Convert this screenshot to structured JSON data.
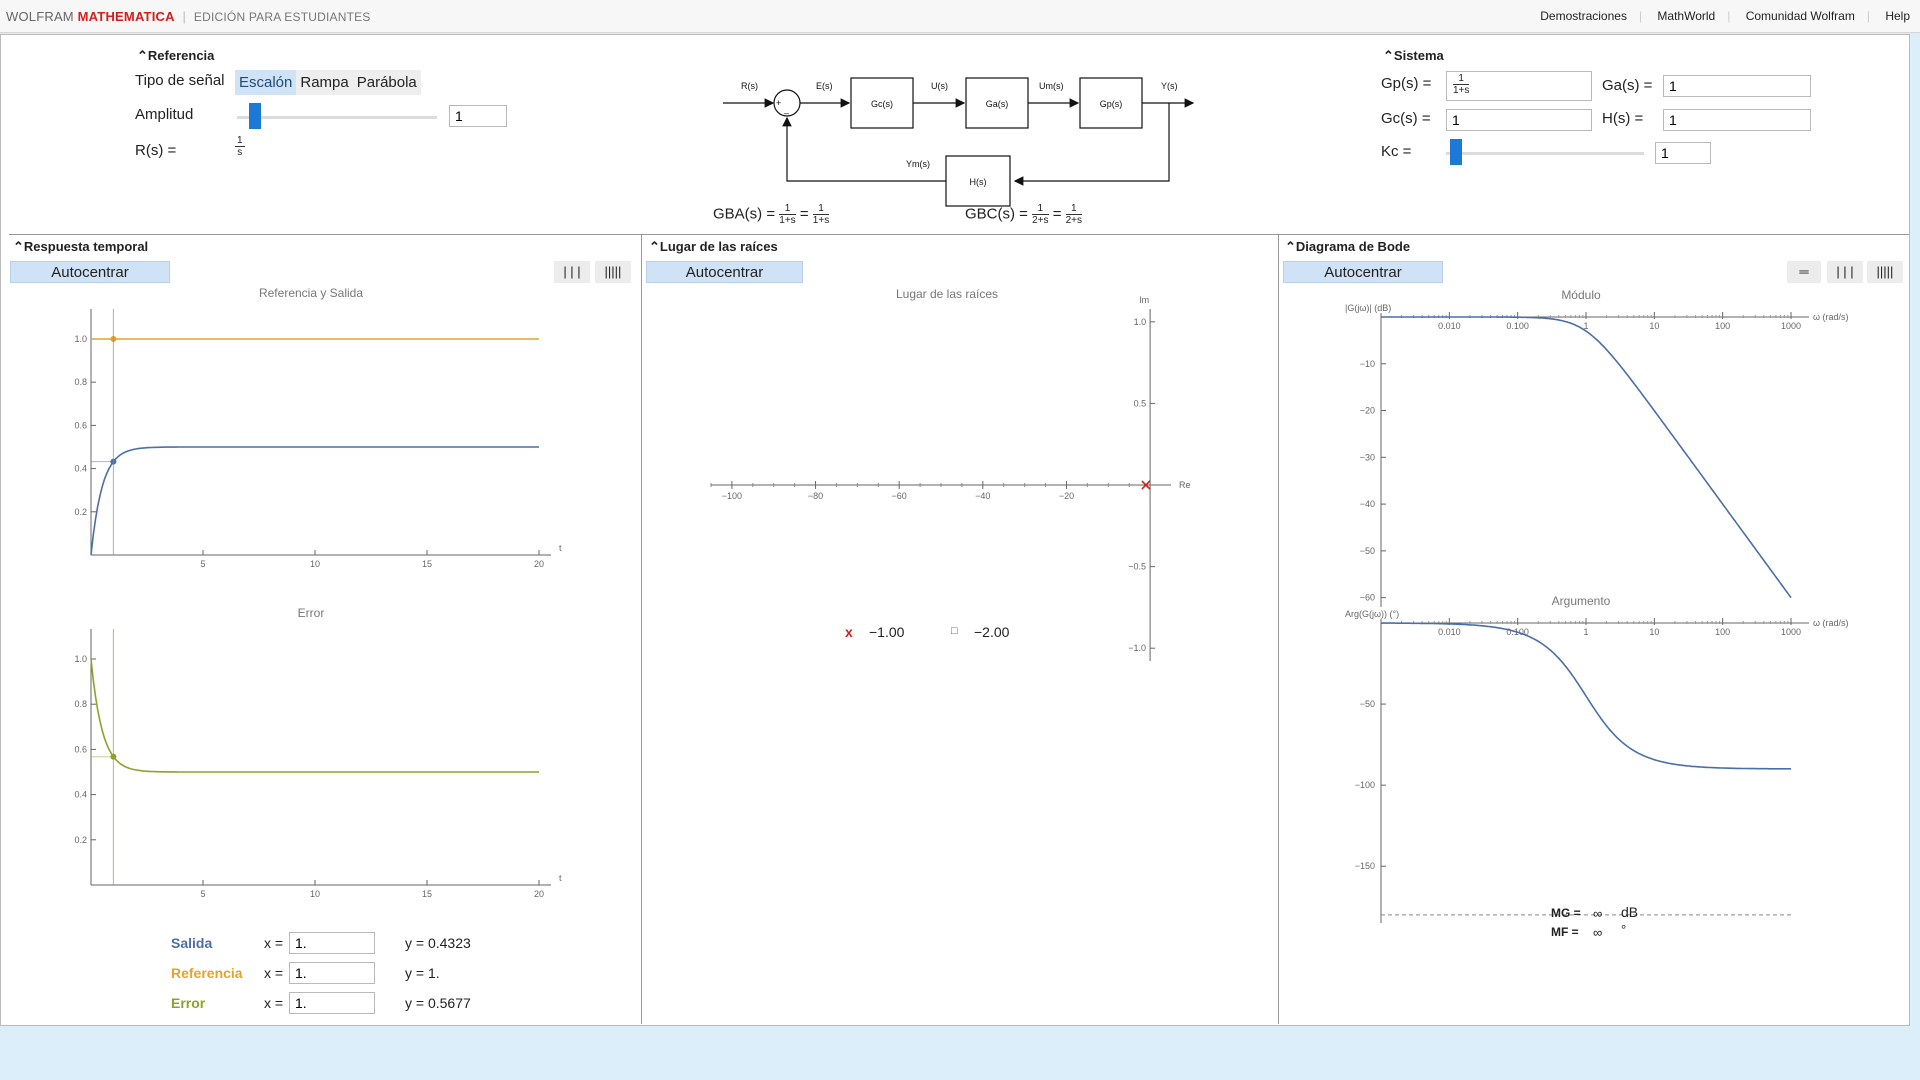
{
  "topbar": {
    "brand_wolfram": "WOLFRAM",
    "brand_mathematica": "MATHEMATICA",
    "brand_edition": "EDICIÓN PARA ESTUDIANTES",
    "links": [
      "Demostraciones",
      "MathWorld",
      "Comunidad Wolfram",
      "Help"
    ]
  },
  "referencia": {
    "header": "Referencia",
    "tipo_label": "Tipo de señal",
    "options": [
      "Escalón",
      "Rampa",
      "Parábola"
    ],
    "selected": "Escalón",
    "amplitud_label": "Amplitud",
    "amplitud_value": "1",
    "amplitud_level": 0.06,
    "rs_label": "R(s) =",
    "rs_num": "1",
    "rs_den": "s"
  },
  "block_diagram": {
    "labels": {
      "rs": "R(s)",
      "es": "E(s)",
      "us": "U(s)",
      "ums": "Um(s)",
      "ys": "Y(s)",
      "yms": "Ym(s)",
      "plus": "+",
      "minus": "–"
    },
    "blocks": {
      "gc": "Gc(s)",
      "ga": "Ga(s)",
      "gp": "Gp(s)",
      "h": "H(s)"
    }
  },
  "transfer": {
    "gba_label": "GBA(s) =",
    "gba_num1": "1",
    "gba_den1": "1+s",
    "gba_num2": "1",
    "gba_den2": "1+s",
    "gbc_label": "GBC(s) =",
    "gbc_num1": "1",
    "gbc_den1": "2+s",
    "gbc_num2": "1",
    "gbc_den2": "2+s",
    "eq": "="
  },
  "sistema": {
    "header": "Sistema",
    "gp_label": "Gp(s) =",
    "gp_num": "1",
    "gp_den": "1+s",
    "ga_label": "Ga(s) =",
    "ga_value": "1",
    "gc_label": "Gc(s) =",
    "gc_value": "1",
    "h_label": "H(s) =",
    "h_value": "1",
    "kc_label": "Kc =",
    "kc_value": "1",
    "kc_level": 0.02
  },
  "respuesta": {
    "header": "Respuesta temporal",
    "autocentrar": "Autocentrar",
    "icon1": "| | |",
    "icon2": "|||||",
    "plot1_title": "Referencia y Salida",
    "plot2_title": "Error",
    "legend": [
      {
        "name": "Salida",
        "x_label": "x =",
        "x_value": "1.",
        "y_text": "y = 0.4323",
        "color": "#4c6ea8"
      },
      {
        "name": "Referencia",
        "x_label": "x =",
        "x_value": "1.",
        "y_text": "y = 1.",
        "color": "#e3a32d"
      },
      {
        "name": "Error",
        "x_label": "x =",
        "x_value": "1.",
        "y_text": "y = 0.5677",
        "color": "#8ea22b"
      }
    ]
  },
  "lugar": {
    "header": "Lugar de las raíces",
    "autocentrar": "Autocentrar",
    "title": "Lugar de las raíces",
    "pole_label": "x",
    "pole_value": "−1.00",
    "zero_label": "□",
    "zero_value": "−2.00"
  },
  "bode": {
    "header": "Diagrama de Bode",
    "autocentrar": "Autocentrar",
    "icon0": "═",
    "icon1": "| | |",
    "icon2": "|||||",
    "mod_title": "Módulo",
    "mod_ylabel": "|G(jω)| (dB)",
    "arg_title": "Argumento",
    "arg_ylabel": "Arg(G(jω)) (°)",
    "xlabel": "ω (rad/s)",
    "mg_label": "MG =",
    "mg_value": "∞",
    "mg_unit": "dB",
    "mf_label": "MF =",
    "mf_value": "∞",
    "mf_unit": "°"
  },
  "chart_data": [
    {
      "type": "line",
      "title": "Referencia y Salida",
      "xlabel": "t",
      "xlim": [
        0,
        20
      ],
      "ylim": [
        0,
        1
      ],
      "xticks": [
        "5",
        "10",
        "15",
        "20"
      ],
      "yticks": [
        "0.2",
        "0.4",
        "0.6",
        "0.8",
        "1.0"
      ],
      "series": [
        {
          "name": "Referencia",
          "color": "#e3a32d",
          "formula": "y=1",
          "x": [
            0,
            20
          ],
          "y": [
            1,
            1
          ]
        },
        {
          "name": "Salida",
          "color": "#4c6ea8",
          "formula": "y=0.5(1-exp(-2t))",
          "x": [
            0,
            0.5,
            1,
            2,
            3,
            20
          ],
          "y": [
            0,
            0.316,
            0.432,
            0.491,
            0.499,
            0.5
          ]
        }
      ],
      "cursor_x": 1
    },
    {
      "type": "line",
      "title": "Error",
      "xlabel": "t",
      "xlim": [
        0,
        20
      ],
      "ylim": [
        0,
        1
      ],
      "xticks": [
        "5",
        "10",
        "15",
        "20"
      ],
      "yticks": [
        "0.2",
        "0.4",
        "0.6",
        "0.8",
        "1.0"
      ],
      "series": [
        {
          "name": "Error",
          "color": "#8ea22b",
          "formula": "y=0.5+0.5exp(-2t)",
          "x": [
            0,
            0.5,
            1,
            2,
            3,
            20
          ],
          "y": [
            1,
            0.684,
            0.568,
            0.509,
            0.501,
            0.5
          ]
        }
      ],
      "cursor_x": 1
    },
    {
      "type": "scatter",
      "title": "Lugar de las raíces",
      "xlabel": "Re",
      "ylabel": "Im",
      "xlim": [
        -105,
        5
      ],
      "ylim": [
        -1,
        1
      ],
      "xticks": [
        "−100",
        "−80",
        "−60",
        "−40",
        "−20"
      ],
      "yticks": [
        "1.0",
        "0.5",
        "−0.5",
        "−1.0"
      ],
      "poles": [
        {
          "re": -1,
          "im": 0
        }
      ]
    },
    {
      "type": "line",
      "title": "Módulo",
      "xlabel": "ω (rad/s)",
      "ylabel": "|G(jω)| (dB)",
      "xscale": "log",
      "xlim": [
        0.001,
        1000
      ],
      "ylim": [
        -62,
        0
      ],
      "xticks": [
        "0.010",
        "0.100",
        "1",
        "10",
        "100",
        "1000"
      ],
      "yticks": [
        "−10",
        "−20",
        "−30",
        "−40",
        "−50",
        "−60"
      ],
      "series": [
        {
          "name": "Módulo",
          "color": "#4c6ea8",
          "formula": "-20log10(sqrt(1+w^2))",
          "x": [
            0.001,
            0.1,
            1,
            10,
            100,
            1000
          ],
          "y": [
            0,
            -0.04,
            -3.01,
            -20.04,
            -40,
            -60
          ]
        }
      ]
    },
    {
      "type": "line",
      "title": "Argumento",
      "xlabel": "ω (rad/s)",
      "ylabel": "Arg(G(jω)) (°)",
      "xscale": "log",
      "xlim": [
        0.001,
        1000
      ],
      "ylim": [
        -185,
        0
      ],
      "xticks": [
        "0.010",
        "0.100",
        "1",
        "10",
        "100",
        "1000"
      ],
      "yticks": [
        "−50",
        "−100",
        "−150"
      ],
      "series": [
        {
          "name": "Argumento",
          "color": "#4c6ea8",
          "formula": "-atan(w) deg",
          "x": [
            0.001,
            0.1,
            1,
            10,
            100,
            1000
          ],
          "y": [
            -0.06,
            -5.7,
            -45,
            -84.3,
            -89.4,
            -89.9
          ]
        }
      ],
      "reference_line": -180
    }
  ]
}
